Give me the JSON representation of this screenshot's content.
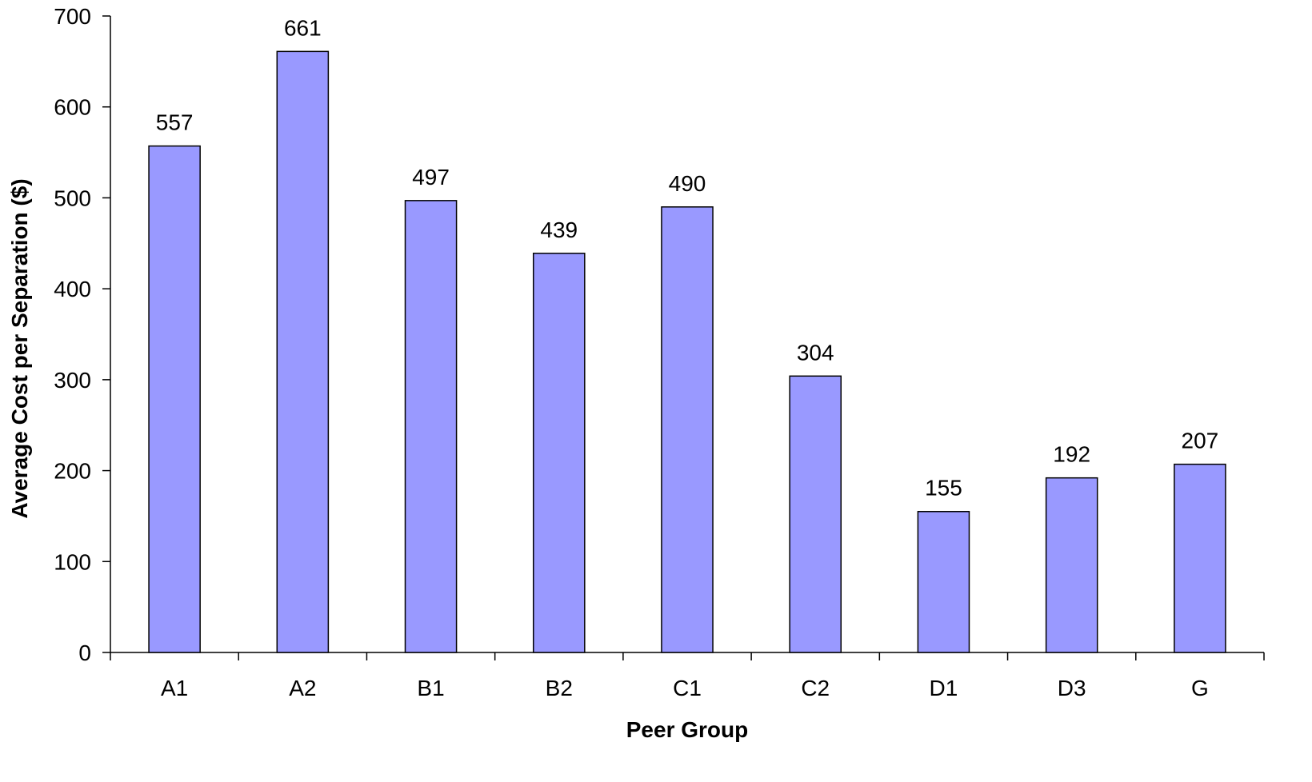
{
  "chart_data": {
    "type": "bar",
    "categories": [
      "A1",
      "A2",
      "B1",
      "B2",
      "C1",
      "C2",
      "D1",
      "D3",
      "G"
    ],
    "values": [
      557,
      661,
      497,
      439,
      490,
      304,
      155,
      192,
      207
    ],
    "data_labels": [
      "557",
      "661",
      "497",
      "439",
      "490",
      "304",
      "155",
      "192",
      "207"
    ],
    "title": "",
    "xlabel": "Peer Group",
    "ylabel": "Average Cost per Separation ($)",
    "ylim": [
      0,
      700
    ],
    "yticks": [
      0,
      100,
      200,
      300,
      400,
      500,
      600,
      700
    ],
    "grid": false,
    "legend": "none",
    "bar_color": "#9999ff",
    "bar_edge_color": "#000000"
  }
}
